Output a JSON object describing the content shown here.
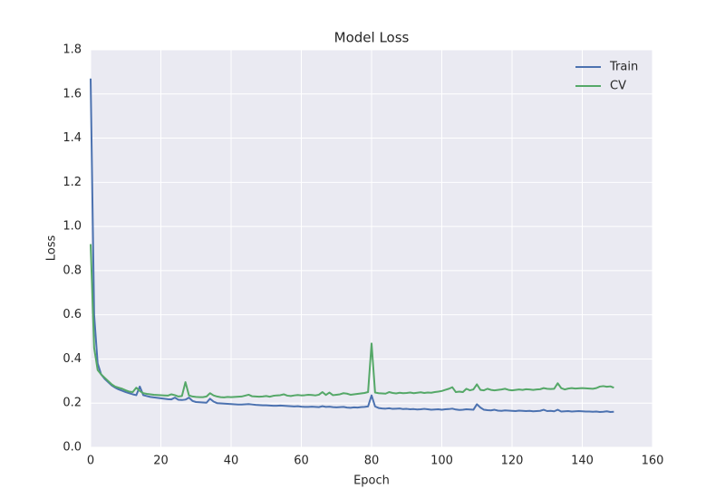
{
  "chart_data": {
    "type": "line",
    "title": "Model Loss",
    "x_label": "Epoch",
    "y_label": "Loss",
    "x": [
      0,
      1,
      2,
      3,
      4,
      5,
      6,
      7,
      8,
      9,
      10,
      11,
      12,
      13,
      14,
      15,
      16,
      17,
      18,
      19,
      20,
      21,
      22,
      23,
      24,
      25,
      26,
      27,
      28,
      29,
      30,
      31,
      32,
      33,
      34,
      35,
      36,
      37,
      38,
      39,
      40,
      41,
      42,
      43,
      44,
      45,
      46,
      47,
      48,
      49,
      50,
      51,
      52,
      53,
      54,
      55,
      56,
      57,
      58,
      59,
      60,
      61,
      62,
      63,
      64,
      65,
      66,
      67,
      68,
      69,
      70,
      71,
      72,
      73,
      74,
      75,
      76,
      77,
      78,
      79,
      80,
      81,
      82,
      83,
      84,
      85,
      86,
      87,
      88,
      89,
      90,
      91,
      92,
      93,
      94,
      95,
      96,
      97,
      98,
      99,
      100,
      101,
      102,
      103,
      104,
      105,
      106,
      107,
      108,
      109,
      110,
      111,
      112,
      113,
      114,
      115,
      116,
      117,
      118,
      119,
      120,
      121,
      122,
      123,
      124,
      125,
      126,
      127,
      128,
      129,
      130,
      131,
      132,
      133,
      134,
      135,
      136,
      137,
      138,
      139,
      140,
      141,
      142,
      143,
      144,
      145,
      146,
      147,
      148,
      149
    ],
    "series": [
      {
        "name": "Train",
        "color": "#4c72b0",
        "values": [
          1.67,
          0.6,
          0.38,
          0.33,
          0.31,
          0.295,
          0.28,
          0.27,
          0.262,
          0.256,
          0.25,
          0.245,
          0.24,
          0.236,
          0.275,
          0.236,
          0.232,
          0.228,
          0.226,
          0.224,
          0.222,
          0.22,
          0.218,
          0.217,
          0.225,
          0.215,
          0.214,
          0.216,
          0.225,
          0.21,
          0.205,
          0.204,
          0.203,
          0.202,
          0.22,
          0.207,
          0.2,
          0.199,
          0.198,
          0.197,
          0.196,
          0.195,
          0.194,
          0.194,
          0.195,
          0.196,
          0.194,
          0.192,
          0.191,
          0.19,
          0.19,
          0.189,
          0.188,
          0.188,
          0.189,
          0.188,
          0.187,
          0.186,
          0.185,
          0.186,
          0.184,
          0.183,
          0.183,
          0.184,
          0.183,
          0.182,
          0.186,
          0.183,
          0.184,
          0.182,
          0.181,
          0.182,
          0.183,
          0.18,
          0.179,
          0.181,
          0.18,
          0.182,
          0.183,
          0.185,
          0.235,
          0.185,
          0.178,
          0.176,
          0.175,
          0.177,
          0.174,
          0.175,
          0.176,
          0.173,
          0.174,
          0.172,
          0.173,
          0.171,
          0.172,
          0.174,
          0.172,
          0.17,
          0.171,
          0.172,
          0.17,
          0.172,
          0.173,
          0.175,
          0.171,
          0.169,
          0.17,
          0.172,
          0.171,
          0.17,
          0.195,
          0.18,
          0.17,
          0.168,
          0.167,
          0.17,
          0.166,
          0.165,
          0.167,
          0.166,
          0.165,
          0.164,
          0.166,
          0.165,
          0.164,
          0.165,
          0.163,
          0.164,
          0.165,
          0.17,
          0.164,
          0.165,
          0.163,
          0.17,
          0.162,
          0.163,
          0.164,
          0.162,
          0.163,
          0.164,
          0.163,
          0.162,
          0.162,
          0.161,
          0.162,
          0.16,
          0.161,
          0.163,
          0.16,
          0.161
        ]
      },
      {
        "name": "CV",
        "color": "#55a868",
        "values": [
          0.92,
          0.45,
          0.35,
          0.33,
          0.315,
          0.3,
          0.285,
          0.275,
          0.27,
          0.265,
          0.258,
          0.252,
          0.25,
          0.27,
          0.255,
          0.245,
          0.242,
          0.24,
          0.238,
          0.237,
          0.236,
          0.235,
          0.234,
          0.24,
          0.236,
          0.23,
          0.232,
          0.295,
          0.235,
          0.23,
          0.228,
          0.227,
          0.227,
          0.23,
          0.245,
          0.235,
          0.23,
          0.227,
          0.226,
          0.228,
          0.227,
          0.228,
          0.229,
          0.23,
          0.234,
          0.238,
          0.231,
          0.23,
          0.229,
          0.23,
          0.232,
          0.229,
          0.233,
          0.235,
          0.236,
          0.24,
          0.234,
          0.232,
          0.235,
          0.237,
          0.235,
          0.236,
          0.238,
          0.237,
          0.235,
          0.238,
          0.25,
          0.237,
          0.248,
          0.236,
          0.238,
          0.24,
          0.245,
          0.243,
          0.238,
          0.24,
          0.242,
          0.244,
          0.246,
          0.25,
          0.47,
          0.248,
          0.245,
          0.244,
          0.243,
          0.25,
          0.246,
          0.244,
          0.247,
          0.245,
          0.246,
          0.248,
          0.245,
          0.247,
          0.249,
          0.246,
          0.248,
          0.247,
          0.25,
          0.252,
          0.255,
          0.26,
          0.265,
          0.272,
          0.25,
          0.252,
          0.25,
          0.265,
          0.258,
          0.262,
          0.285,
          0.26,
          0.258,
          0.265,
          0.26,
          0.258,
          0.26,
          0.262,
          0.265,
          0.26,
          0.258,
          0.26,
          0.262,
          0.26,
          0.263,
          0.262,
          0.26,
          0.262,
          0.263,
          0.268,
          0.265,
          0.264,
          0.265,
          0.29,
          0.268,
          0.262,
          0.266,
          0.268,
          0.266,
          0.267,
          0.268,
          0.267,
          0.266,
          0.265,
          0.268,
          0.275,
          0.277,
          0.274,
          0.276,
          0.27
        ]
      }
    ],
    "xlim": [
      0,
      160
    ],
    "xticks": [
      0,
      20,
      40,
      60,
      80,
      100,
      120,
      140,
      160
    ],
    "ylim": [
      0,
      1.8
    ],
    "yticks": [
      {
        "value": 0,
        "label": "0.0"
      },
      0.2,
      0.4,
      0.6,
      0.8,
      {
        "value": 1,
        "label": "1.0"
      },
      1.2,
      1.4,
      1.6,
      1.8
    ],
    "grid": true,
    "legend": "upper right"
  }
}
